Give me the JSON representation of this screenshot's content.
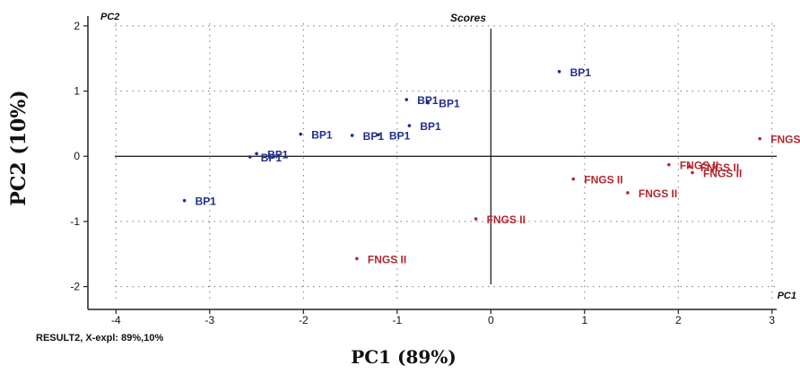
{
  "chart_data": {
    "type": "scatter",
    "title": "Scores",
    "x_axis_tag": "PC1",
    "y_axis_tag": "PC2",
    "xlabel": "PC1 (89%)",
    "ylabel": "PC2 (10%)",
    "xlim": [
      -4.3,
      3.05
    ],
    "ylim": [
      -2.35,
      2.15
    ],
    "x_ticks": [
      -4,
      -3,
      -2,
      -1,
      0,
      1,
      2,
      3
    ],
    "y_ticks": [
      -2,
      -1,
      0,
      1,
      2
    ],
    "grid": true,
    "series": [
      {
        "name": "BP1",
        "color": "#1f2d8c",
        "points": [
          {
            "x": 0.73,
            "y": 1.3,
            "label": "BP1"
          },
          {
            "x": -0.9,
            "y": 0.87,
            "label": "BP1"
          },
          {
            "x": -0.67,
            "y": 0.82,
            "label": "BP1"
          },
          {
            "x": -0.87,
            "y": 0.47,
            "label": "BP1"
          },
          {
            "x": -2.03,
            "y": 0.34,
            "label": "BP1"
          },
          {
            "x": -1.48,
            "y": 0.32,
            "label": "BP1"
          },
          {
            "x": -1.2,
            "y": 0.33,
            "label": "BP1"
          },
          {
            "x": -2.5,
            "y": 0.04,
            "label": "BP1"
          },
          {
            "x": -2.57,
            "y": -0.01,
            "label": "BP1"
          },
          {
            "x": -3.27,
            "y": -0.68,
            "label": "BP1"
          }
        ]
      },
      {
        "name": "FNGS II",
        "color": "#b3262e",
        "points": [
          {
            "x": 2.87,
            "y": 0.27,
            "label": "FNGS II"
          },
          {
            "x": 1.9,
            "y": -0.13,
            "label": "FNGS II"
          },
          {
            "x": 2.12,
            "y": -0.16,
            "label": "FNGS II"
          },
          {
            "x": 2.15,
            "y": -0.25,
            "label": "FNGS II"
          },
          {
            "x": 0.88,
            "y": -0.35,
            "label": "FNGS II"
          },
          {
            "x": 1.46,
            "y": -0.56,
            "label": "FNGS II"
          },
          {
            "x": -0.16,
            "y": -0.96,
            "label": "FNGS II"
          },
          {
            "x": -1.43,
            "y": -1.57,
            "label": "FNGS II"
          }
        ]
      }
    ]
  },
  "footer_text": "RESULT2, X-expl: 89%,10%"
}
